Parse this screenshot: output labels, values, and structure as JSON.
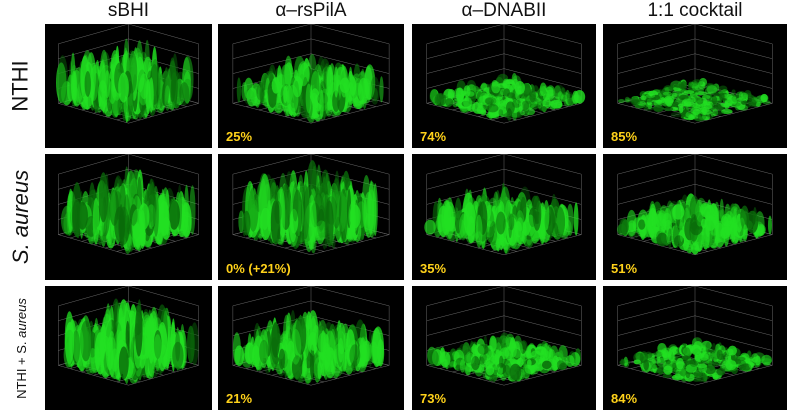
{
  "columns": [
    "sBHI",
    "α–rsPilA",
    "α–DNABII",
    "1:1 cocktail"
  ],
  "rows": [
    {
      "label": "NTHI",
      "label_prefix": "",
      "italic": false,
      "reduction": [
        "",
        "25%",
        "74%",
        "85%"
      ],
      "biofilm_level": [
        0.85,
        0.6,
        0.25,
        0.15
      ]
    },
    {
      "label": "aureus",
      "label_prefix": "S. ",
      "italic": true,
      "reduction": [
        "",
        "0% (+21%)",
        "35%",
        "51%"
      ],
      "biofilm_level": [
        0.85,
        0.95,
        0.6,
        0.45
      ]
    },
    {
      "label": "aureus",
      "label_prefix": "NTHI + S. ",
      "italic": true,
      "reduction": [
        "",
        "21%",
        "73%",
        "84%"
      ],
      "biofilm_level": [
        0.9,
        0.7,
        0.3,
        0.2
      ]
    }
  ],
  "colors": {
    "biofilm": "#22e022",
    "biofilm_dark": "#0a6a0a",
    "grid": "#6a6a6a",
    "axis_blue": "#4a5cff",
    "percent": "#ffd21a"
  }
}
